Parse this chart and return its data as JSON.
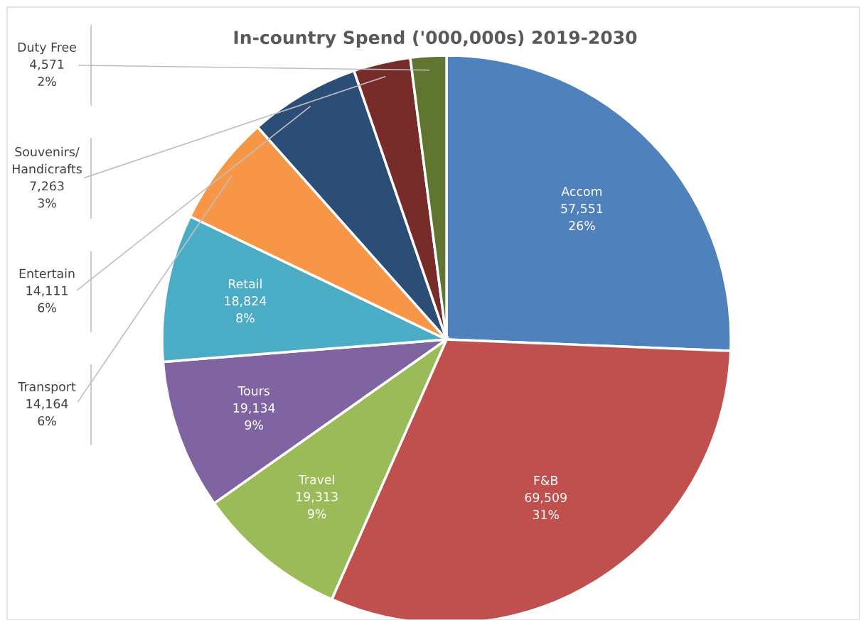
{
  "chart_data": {
    "type": "pie",
    "title": "In-country Spend ('000,000s) 2019-2030",
    "categories": [
      "Accom",
      "F&B",
      "Travel",
      "Tours",
      "Retail",
      "Transport",
      "Entertain",
      "Souvenirs/\nHandicrafts",
      "Duty Free"
    ],
    "values": [
      57551,
      69509,
      19313,
      19134,
      18824,
      14164,
      14111,
      7263,
      4571
    ],
    "value_labels": [
      "57,551\n26%",
      "69,509\n31%",
      "19,313\n9%",
      "19,134\n9%",
      "18,824\n8%",
      "14,164\n6%",
      "14,111\n6%",
      "7,263\n3%",
      "4,571\n2%"
    ],
    "colors": [
      "#4f81bd",
      "#c0504d",
      "#9bbb59",
      "#8064a2",
      "#4bacc6",
      "#f79646",
      "#2c4d75",
      "#772c2a",
      "#5f7530"
    ],
    "legend": false
  }
}
